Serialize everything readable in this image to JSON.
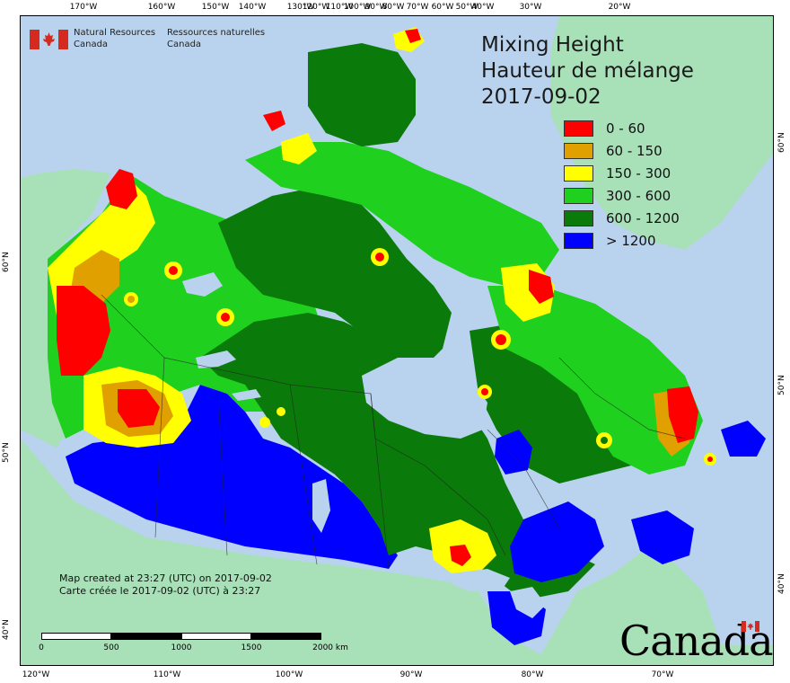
{
  "title": {
    "line1": "Mixing Height",
    "line2": "Hauteur de mélange",
    "line3": "2017-09-02"
  },
  "agency": {
    "english": "Natural Resources\nCanada",
    "english_line1": "Natural Resources",
    "english_line2": "Canada",
    "french_line1": "Ressources naturelles",
    "french_line2": "Canada"
  },
  "legend": [
    {
      "label": "0 - 60",
      "color": "#ff0000"
    },
    {
      "label": "60 - 150",
      "color": "#e0a000"
    },
    {
      "label": "150 - 300",
      "color": "#ffff00"
    },
    {
      "label": "300 - 600",
      "color": "#1fd01f"
    },
    {
      "label": "600 - 1200",
      "color": "#0a7a0a"
    },
    {
      "label": "> 1200",
      "color": "#0000ff"
    }
  ],
  "credits": {
    "line1": "Map created at 23:27 (UTC) on 2017-09-02",
    "line2": "Carte créée le 2017-09-02 (UTC) à 23:27"
  },
  "scale": {
    "labels": [
      "0",
      "500",
      "1000",
      "1500",
      "2000 km"
    ]
  },
  "wordmark": "Canada",
  "ticks": {
    "top": [
      "170°W",
      "160°W",
      "150°W",
      "140°W",
      "130°W",
      "120°W",
      "110°W",
      "100°W",
      "90°W",
      "80°W",
      "70°W",
      "60°W",
      "50°W",
      "40°W",
      "30°W",
      "20°W"
    ],
    "bottom": [
      "120°W",
      "110°W",
      "100°W",
      "90°W",
      "80°W",
      "70°W"
    ],
    "left": [
      "60°N",
      "50°N",
      "40°N"
    ],
    "right": [
      "60°N",
      "50°N",
      "40°N"
    ]
  },
  "colors": {
    "ocean": "#b9d3ef",
    "land_outside": "#a8e0b8",
    "lakes": "#b9d3ef"
  }
}
